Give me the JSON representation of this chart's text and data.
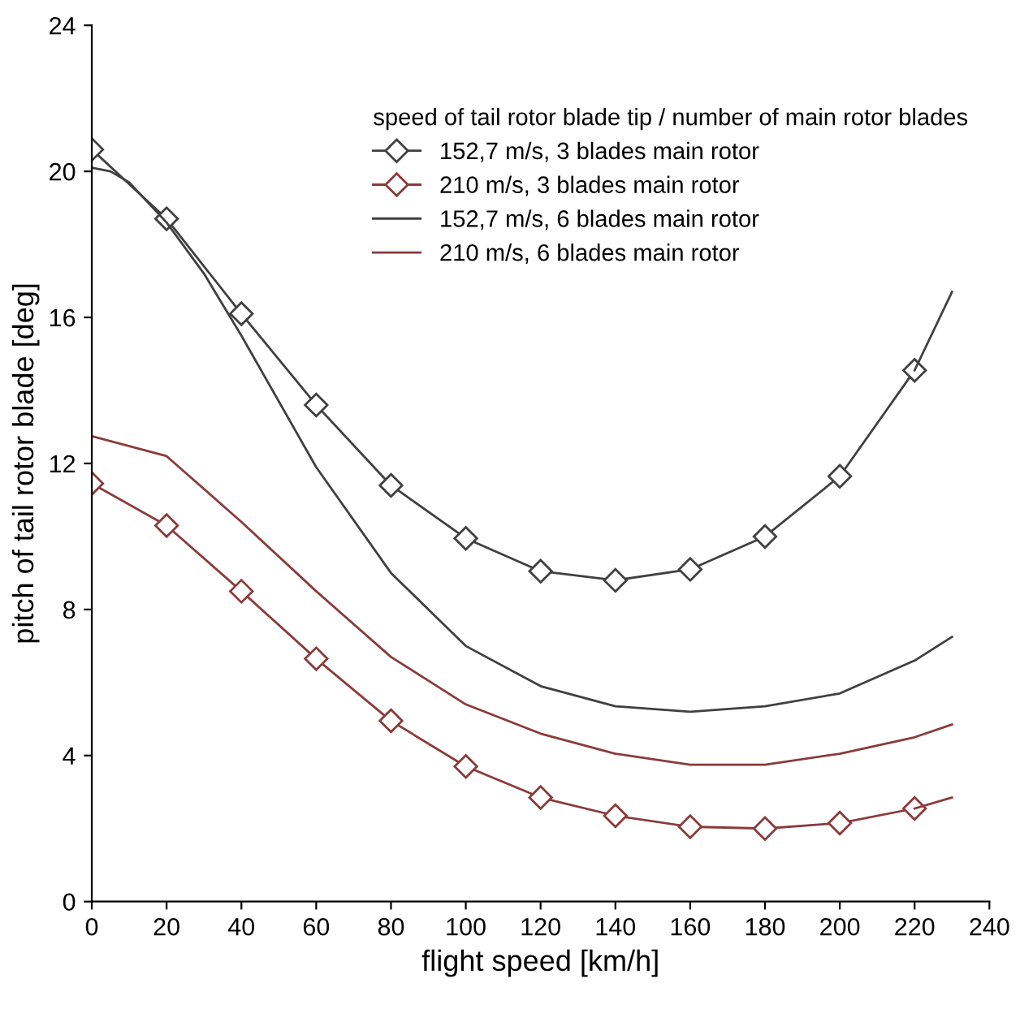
{
  "chart_data": {
    "type": "line",
    "xlabel": "flight speed [km/h]",
    "ylabel": "pitch of tail rotor blade [deg]",
    "legend_title": "speed of tail rotor blade tip / number of main rotor blades",
    "legend": "top right",
    "grid": false,
    "xlim": [
      0,
      240
    ],
    "xticks": [
      0,
      20,
      40,
      60,
      80,
      100,
      120,
      140,
      160,
      180,
      200,
      220,
      240
    ],
    "ylim": [
      0,
      24
    ],
    "yticks": [
      0,
      4,
      8,
      12,
      16,
      20,
      24
    ],
    "series": [
      {
        "name": "152,7 m/s, 3 blades main rotor",
        "color": "#404040",
        "marker": "diamond",
        "x": [
          0,
          20,
          40,
          60,
          80,
          100,
          120,
          140,
          160,
          180,
          200,
          220
        ],
        "values": [
          20.6,
          18.7,
          16.1,
          13.6,
          11.4,
          9.95,
          9.05,
          8.8,
          9.1,
          10.0,
          11.65,
          14.55
        ]
      },
      {
        "color": "#404040",
        "marker": "none",
        "x": [
          220,
          230
        ],
        "values": [
          14.55,
          16.7
        ]
      },
      {
        "name": "210 m/s, 3 blades main rotor",
        "color": "#8b3a3a",
        "marker": "diamond",
        "x": [
          0,
          20,
          40,
          60,
          80,
          100,
          120,
          140,
          160,
          180,
          200,
          220
        ],
        "values": [
          11.45,
          10.3,
          8.5,
          6.65,
          4.95,
          3.7,
          2.85,
          2.35,
          2.05,
          2.0,
          2.15,
          2.55
        ]
      },
      {
        "color": "#8b3a3a",
        "marker": "none",
        "x": [
          220,
          230
        ],
        "values": [
          2.55,
          2.85
        ]
      },
      {
        "name": "152,7 m/s, 6 blades main rotor",
        "color": "#404040",
        "marker": "none",
        "x": [
          0,
          5,
          10,
          20,
          30,
          40,
          60,
          80,
          100,
          120,
          140,
          160,
          180,
          200,
          220,
          230
        ],
        "values": [
          20.1,
          20.0,
          19.7,
          18.6,
          17.2,
          15.5,
          11.9,
          9.0,
          7.0,
          5.9,
          5.35,
          5.2,
          5.35,
          5.7,
          6.6,
          7.25
        ]
      },
      {
        "name": "210 m/s, 6 blades main rotor",
        "color": "#8b3a3a",
        "marker": "none",
        "x": [
          0,
          20,
          40,
          60,
          80,
          100,
          120,
          140,
          160,
          180,
          200,
          220,
          230
        ],
        "values": [
          12.75,
          12.2,
          10.4,
          8.5,
          6.7,
          5.4,
          4.6,
          4.05,
          3.75,
          3.75,
          4.05,
          4.5,
          4.85
        ]
      }
    ]
  }
}
